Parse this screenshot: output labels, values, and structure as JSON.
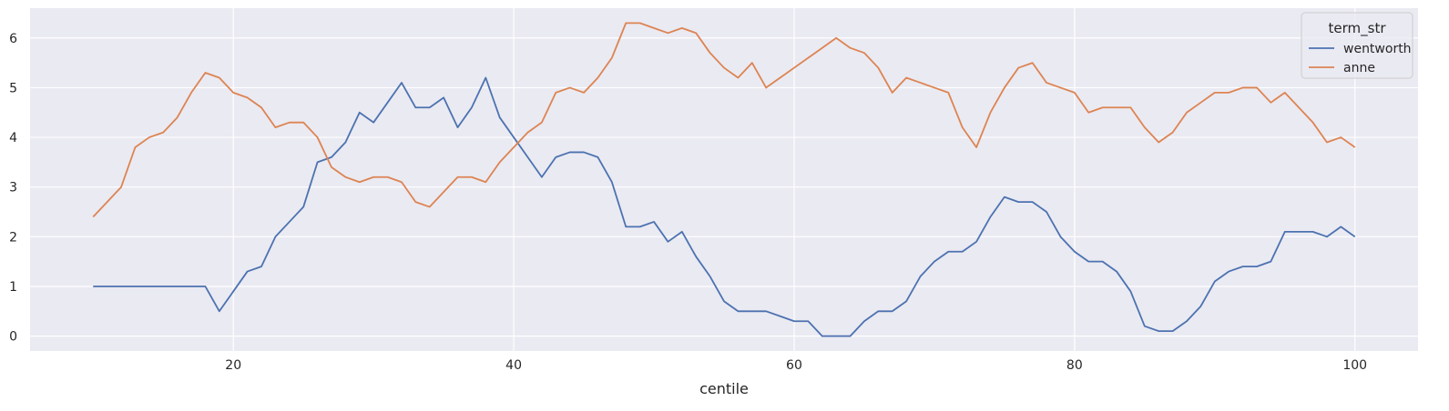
{
  "chart_data": {
    "type": "line",
    "title": "",
    "xlabel": "centile",
    "ylabel": "",
    "xlim": [
      5.5,
      104.5
    ],
    "ylim": [
      -0.3,
      6.6
    ],
    "xticks": [
      20,
      40,
      60,
      80,
      100
    ],
    "yticks": [
      0,
      1,
      2,
      3,
      4,
      5,
      6
    ],
    "grid": true,
    "legend": {
      "title": "term_str",
      "placement": "top-right"
    },
    "x": [
      10,
      11,
      12,
      13,
      14,
      15,
      16,
      17,
      18,
      19,
      20,
      21,
      22,
      23,
      24,
      25,
      26,
      27,
      28,
      29,
      30,
      31,
      32,
      33,
      34,
      35,
      36,
      37,
      38,
      39,
      40,
      41,
      42,
      43,
      44,
      45,
      46,
      47,
      48,
      49,
      50,
      51,
      52,
      53,
      54,
      55,
      56,
      57,
      58,
      59,
      60,
      61,
      62,
      63,
      64,
      65,
      66,
      67,
      68,
      69,
      70,
      71,
      72,
      73,
      74,
      75,
      76,
      77,
      78,
      79,
      80,
      81,
      82,
      83,
      84,
      85,
      86,
      87,
      88,
      89,
      90,
      91,
      92,
      93,
      94,
      95,
      96,
      97,
      98,
      99,
      100
    ],
    "series": [
      {
        "name": "wentworth",
        "color": "#4c72b0",
        "values": [
          1.0,
          1.0,
          1.0,
          1.0,
          1.0,
          1.0,
          1.0,
          1.0,
          1.0,
          0.5,
          0.9,
          1.3,
          1.4,
          2.0,
          2.3,
          2.6,
          3.5,
          3.6,
          3.9,
          4.5,
          4.3,
          4.7,
          5.1,
          4.6,
          4.6,
          4.8,
          4.2,
          4.6,
          5.2,
          4.4,
          4.0,
          3.6,
          3.2,
          3.6,
          3.7,
          3.7,
          3.6,
          3.1,
          2.2,
          2.2,
          2.3,
          1.9,
          2.1,
          1.6,
          1.2,
          0.7,
          0.5,
          0.5,
          0.5,
          0.4,
          0.3,
          0.3,
          0.0,
          0.0,
          0.0,
          0.3,
          0.5,
          0.5,
          0.7,
          1.2,
          1.5,
          1.7,
          1.7,
          1.9,
          2.4,
          2.8,
          2.7,
          2.7,
          2.5,
          2.0,
          1.7,
          1.5,
          1.5,
          1.3,
          0.9,
          0.2,
          0.1,
          0.1,
          0.3,
          0.6,
          1.1,
          1.3,
          1.4,
          1.4,
          1.5,
          2.1,
          2.1,
          2.1,
          2.0,
          2.2,
          2.0
        ]
      },
      {
        "name": "anne",
        "color": "#dd8452",
        "values": [
          2.4,
          2.7,
          3.0,
          3.8,
          4.0,
          4.1,
          4.4,
          4.9,
          5.3,
          5.2,
          4.9,
          4.8,
          4.6,
          4.2,
          4.3,
          4.3,
          4.0,
          3.4,
          3.2,
          3.1,
          3.2,
          3.2,
          3.1,
          2.7,
          2.6,
          2.9,
          3.2,
          3.2,
          3.1,
          3.5,
          3.8,
          4.1,
          4.3,
          4.9,
          5.0,
          4.9,
          5.2,
          5.6,
          6.3,
          6.3,
          6.2,
          6.1,
          6.2,
          6.1,
          5.7,
          5.4,
          5.2,
          5.5,
          5.0,
          5.2,
          5.4,
          5.6,
          5.8,
          6.0,
          5.8,
          5.7,
          5.4,
          4.9,
          5.2,
          5.1,
          5.0,
          4.9,
          4.2,
          3.8,
          4.5,
          5.0,
          5.4,
          5.5,
          5.1,
          5.0,
          4.9,
          4.5,
          4.6,
          4.6,
          4.6,
          4.2,
          3.9,
          4.1,
          4.5,
          4.7,
          4.9,
          4.9,
          5.0,
          5.0,
          4.7,
          4.9,
          4.6,
          4.3,
          3.9,
          4.0,
          3.8
        ]
      }
    ]
  },
  "colors": {
    "plot_background": "#eaeaf2",
    "grid": "#ffffff"
  }
}
